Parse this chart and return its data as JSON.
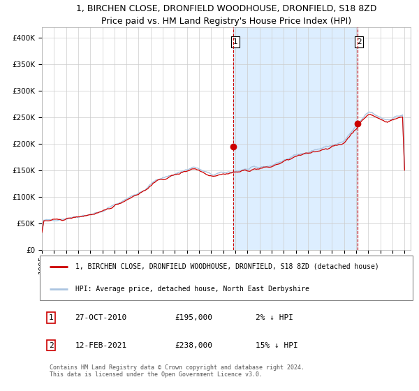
{
  "title": "1, BIRCHEN CLOSE, DRONFIELD WOODHOUSE, DRONFIELD, S18 8ZD",
  "subtitle": "Price paid vs. HM Land Registry's House Price Index (HPI)",
  "ylim": [
    0,
    420000
  ],
  "yticks": [
    0,
    50000,
    100000,
    150000,
    200000,
    250000,
    300000,
    350000,
    400000
  ],
  "ytick_labels": [
    "£0",
    "£50K",
    "£100K",
    "£150K",
    "£200K",
    "£250K",
    "£300K",
    "£350K",
    "£400K"
  ],
  "hpi_color": "#aac4e0",
  "price_color": "#cc0000",
  "background_color": "#ffffff",
  "grid_color": "#cccccc",
  "shade_color": "#ddeeff",
  "legend_label_price": "1, BIRCHEN CLOSE, DRONFIELD WOODHOUSE, DRONFIELD, S18 8ZD (detached house)",
  "legend_label_hpi": "HPI: Average price, detached house, North East Derbyshire",
  "sale1_date_num": 2010.82,
  "sale1_price": 195000,
  "sale1_label": "1",
  "sale2_date_num": 2021.12,
  "sale2_price": 238000,
  "sale2_label": "2",
  "footer": "Contains HM Land Registry data © Crown copyright and database right 2024.\nThis data is licensed under the Open Government Licence v3.0.",
  "title_fontsize": 9,
  "tick_fontsize": 7.5,
  "legend_fontsize": 7,
  "footer_fontsize": 6,
  "annot_fontsize": 7.5,
  "table_fontsize": 8
}
